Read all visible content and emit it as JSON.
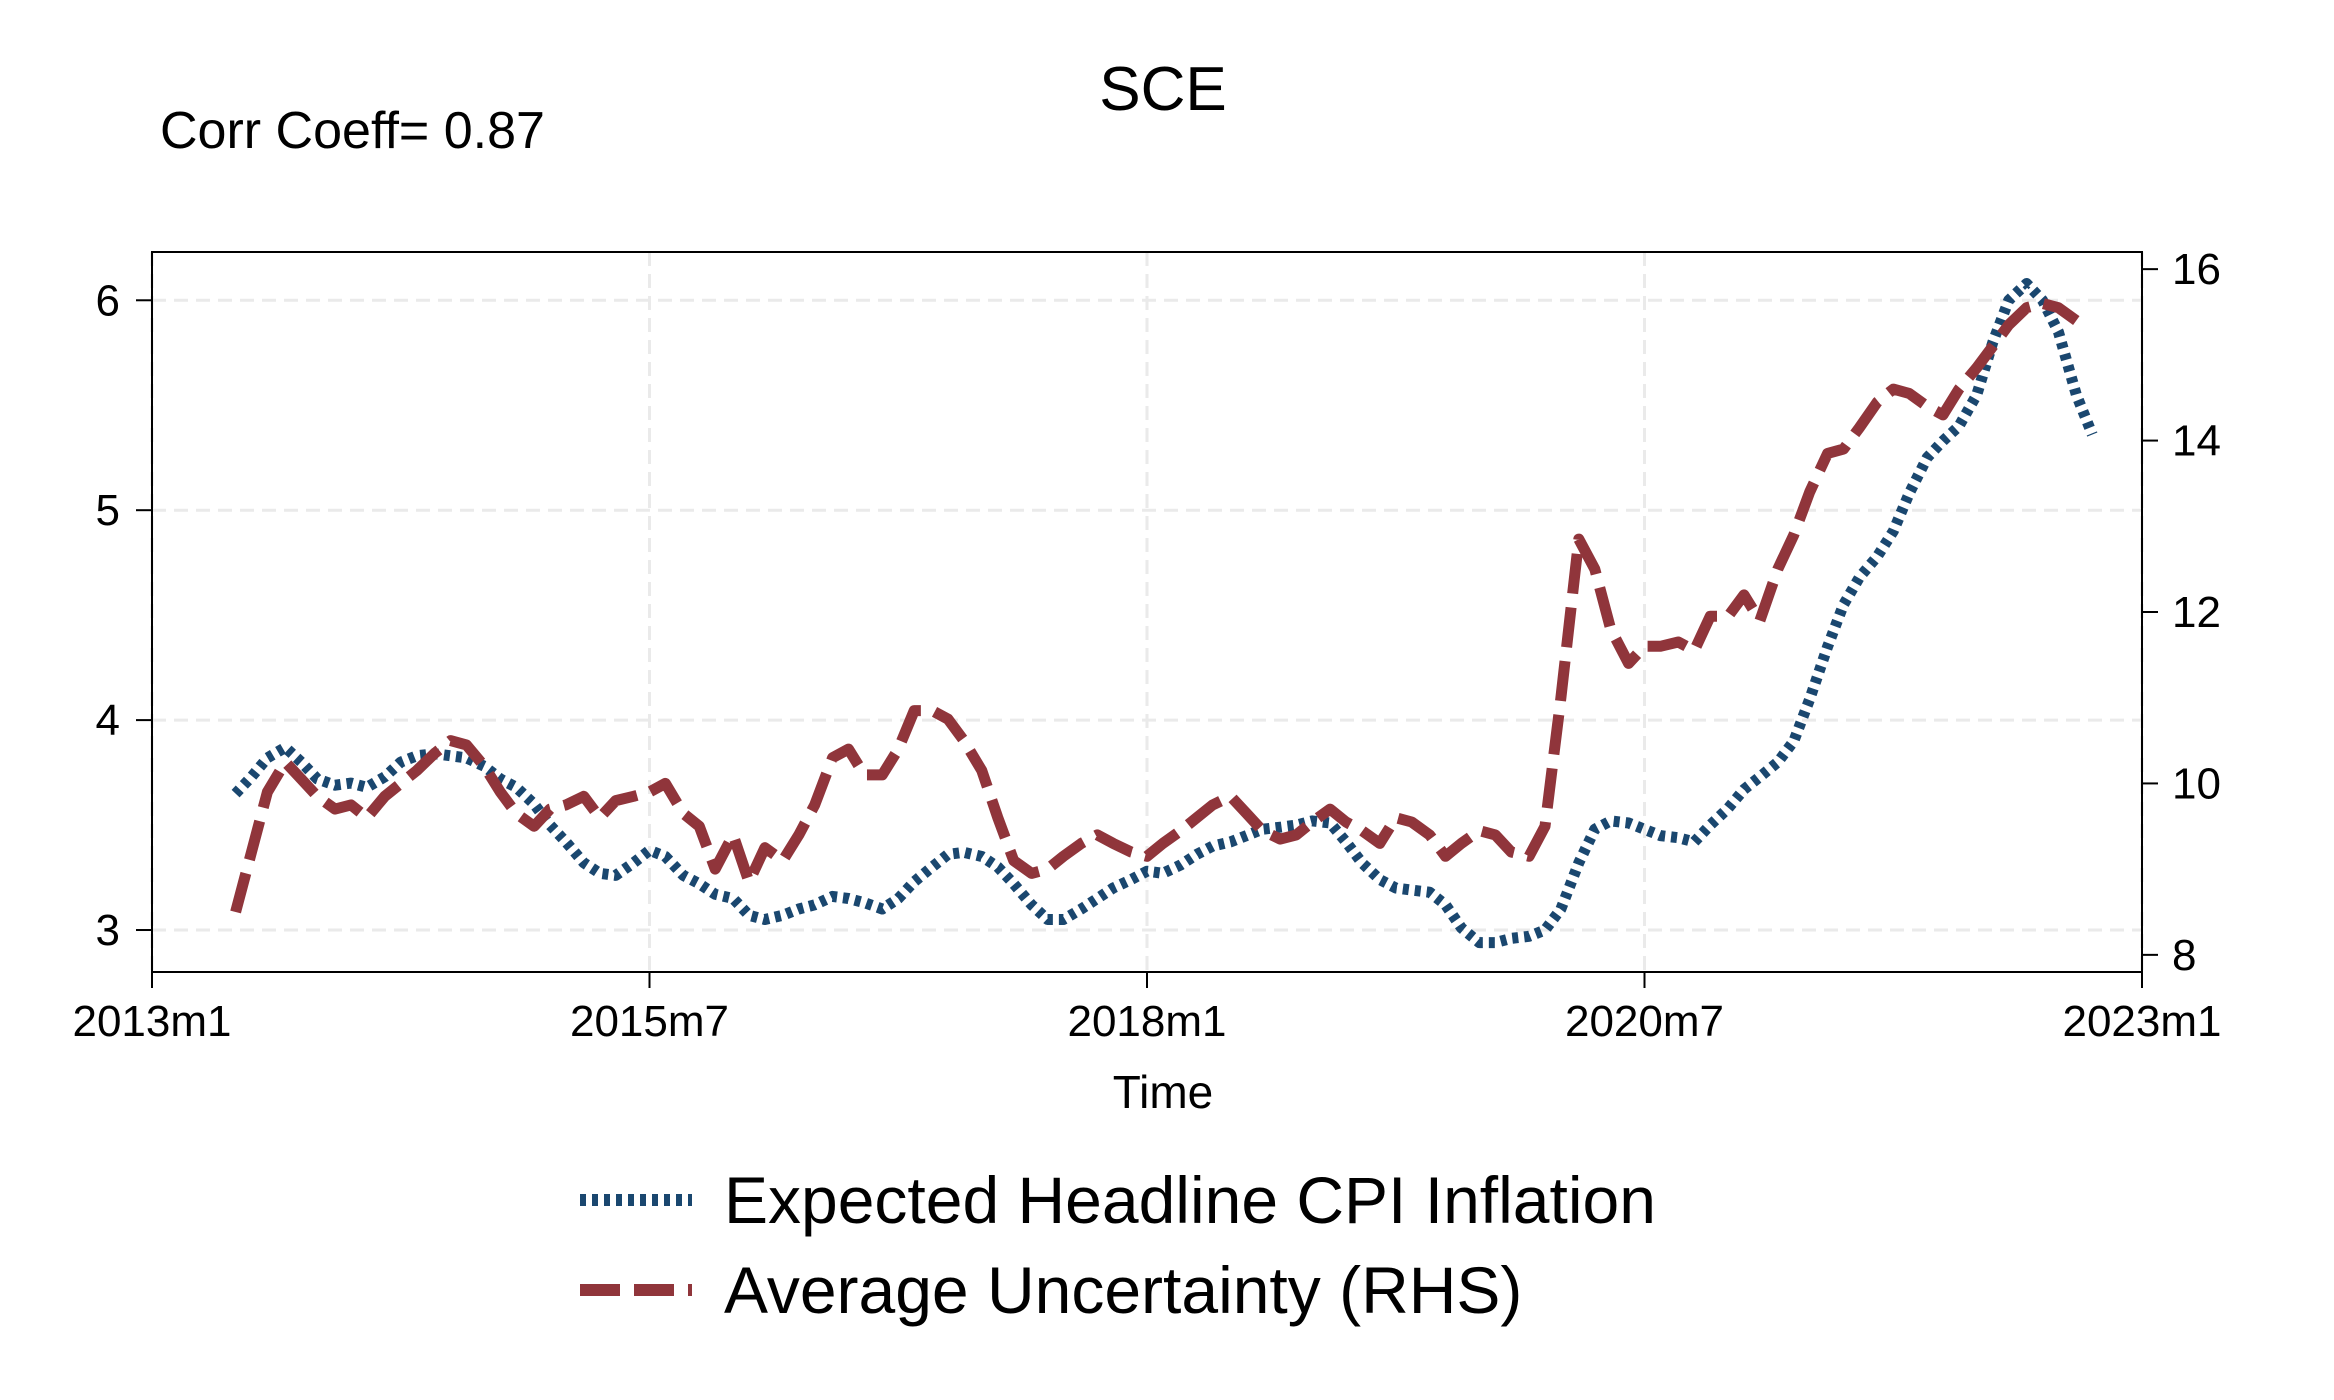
{
  "chart_data": {
    "type": "line",
    "title": "SCE",
    "subtitle": "Corr Coeff= 0.87",
    "xlabel": "Time",
    "ylabel": "",
    "y2label": "",
    "xlim": [
      2013.0,
      2023.0
    ],
    "ylim": [
      2.8,
      6.23
    ],
    "y2lim": [
      7.8,
      16.2
    ],
    "x_ticks": [
      2013.0,
      2015.5,
      2018.0,
      2020.5,
      2023.0
    ],
    "x_tick_labels": [
      "2013m1",
      "2015m7",
      "2018m1",
      "2020m7",
      "2023m1"
    ],
    "y_ticks": [
      3,
      4,
      5,
      6
    ],
    "y_tick_labels": [
      "3",
      "4",
      "5",
      "6"
    ],
    "y2_ticks": [
      8,
      10,
      12,
      14,
      16
    ],
    "y2_tick_labels": [
      "8",
      "10",
      "12",
      "14",
      "16"
    ],
    "grid": true,
    "legend_position": "bottom",
    "series": [
      {
        "name": "Expected Headline CPI Inflation",
        "axis": "left",
        "color": "#1a476f",
        "style": "dotted",
        "points": [
          [
            2013.42,
            3.65
          ],
          [
            2013.5,
            3.73
          ],
          [
            2013.58,
            3.82
          ],
          [
            2013.67,
            3.87
          ],
          [
            2013.75,
            3.8
          ],
          [
            2013.83,
            3.72
          ],
          [
            2013.92,
            3.69
          ],
          [
            2014.0,
            3.7
          ],
          [
            2014.08,
            3.68
          ],
          [
            2014.17,
            3.73
          ],
          [
            2014.25,
            3.8
          ],
          [
            2014.33,
            3.83
          ],
          [
            2014.42,
            3.84
          ],
          [
            2014.5,
            3.83
          ],
          [
            2014.58,
            3.82
          ],
          [
            2014.67,
            3.78
          ],
          [
            2014.75,
            3.72
          ],
          [
            2014.83,
            3.68
          ],
          [
            2014.92,
            3.6
          ],
          [
            2015.0,
            3.5
          ],
          [
            2015.08,
            3.42
          ],
          [
            2015.17,
            3.32
          ],
          [
            2015.25,
            3.27
          ],
          [
            2015.33,
            3.26
          ],
          [
            2015.42,
            3.32
          ],
          [
            2015.5,
            3.38
          ],
          [
            2015.58,
            3.35
          ],
          [
            2015.67,
            3.26
          ],
          [
            2015.75,
            3.22
          ],
          [
            2015.83,
            3.17
          ],
          [
            2015.92,
            3.15
          ],
          [
            2016.0,
            3.07
          ],
          [
            2016.08,
            3.05
          ],
          [
            2016.17,
            3.07
          ],
          [
            2016.25,
            3.1
          ],
          [
            2016.33,
            3.12
          ],
          [
            2016.42,
            3.16
          ],
          [
            2016.5,
            3.15
          ],
          [
            2016.58,
            3.13
          ],
          [
            2016.67,
            3.1
          ],
          [
            2016.75,
            3.15
          ],
          [
            2016.83,
            3.23
          ],
          [
            2016.92,
            3.3
          ],
          [
            2017.0,
            3.36
          ],
          [
            2017.08,
            3.37
          ],
          [
            2017.17,
            3.35
          ],
          [
            2017.25,
            3.3
          ],
          [
            2017.33,
            3.22
          ],
          [
            2017.42,
            3.12
          ],
          [
            2017.5,
            3.05
          ],
          [
            2017.58,
            3.05
          ],
          [
            2017.67,
            3.1
          ],
          [
            2017.75,
            3.15
          ],
          [
            2017.83,
            3.2
          ],
          [
            2017.92,
            3.24
          ],
          [
            2018.0,
            3.28
          ],
          [
            2018.08,
            3.27
          ],
          [
            2018.17,
            3.31
          ],
          [
            2018.25,
            3.36
          ],
          [
            2018.33,
            3.4
          ],
          [
            2018.42,
            3.42
          ],
          [
            2018.5,
            3.45
          ],
          [
            2018.58,
            3.48
          ],
          [
            2018.67,
            3.49
          ],
          [
            2018.75,
            3.5
          ],
          [
            2018.83,
            3.52
          ],
          [
            2018.92,
            3.51
          ],
          [
            2019.0,
            3.42
          ],
          [
            2019.08,
            3.32
          ],
          [
            2019.17,
            3.24
          ],
          [
            2019.25,
            3.2
          ],
          [
            2019.33,
            3.19
          ],
          [
            2019.42,
            3.18
          ],
          [
            2019.5,
            3.12
          ],
          [
            2019.58,
            3.01
          ],
          [
            2019.67,
            2.94
          ],
          [
            2019.75,
            2.94
          ],
          [
            2019.83,
            2.96
          ],
          [
            2019.92,
            2.97
          ],
          [
            2020.0,
            3.0
          ],
          [
            2020.08,
            3.1
          ],
          [
            2020.17,
            3.32
          ],
          [
            2020.25,
            3.48
          ],
          [
            2020.33,
            3.52
          ],
          [
            2020.42,
            3.51
          ],
          [
            2020.5,
            3.48
          ],
          [
            2020.58,
            3.45
          ],
          [
            2020.67,
            3.44
          ],
          [
            2020.75,
            3.42
          ],
          [
            2020.83,
            3.5
          ],
          [
            2020.92,
            3.58
          ],
          [
            2021.0,
            3.67
          ],
          [
            2021.08,
            3.73
          ],
          [
            2021.17,
            3.8
          ],
          [
            2021.25,
            3.9
          ],
          [
            2021.33,
            4.1
          ],
          [
            2021.42,
            4.35
          ],
          [
            2021.5,
            4.55
          ],
          [
            2021.58,
            4.68
          ],
          [
            2021.67,
            4.78
          ],
          [
            2021.75,
            4.9
          ],
          [
            2021.83,
            5.08
          ],
          [
            2021.92,
            5.25
          ],
          [
            2022.0,
            5.33
          ],
          [
            2022.08,
            5.4
          ],
          [
            2022.17,
            5.55
          ],
          [
            2022.25,
            5.8
          ],
          [
            2022.33,
            6.0
          ],
          [
            2022.42,
            6.08
          ],
          [
            2022.5,
            6.0
          ],
          [
            2022.58,
            5.85
          ],
          [
            2022.67,
            5.55
          ],
          [
            2022.75,
            5.36
          ]
        ]
      },
      {
        "name": "Average Uncertainty (RHS)",
        "axis": "right",
        "color": "#90353b",
        "style": "dashed",
        "points": [
          [
            2013.42,
            8.5
          ],
          [
            2013.5,
            9.2
          ],
          [
            2013.58,
            9.9
          ],
          [
            2013.67,
            10.25
          ],
          [
            2013.75,
            10.05
          ],
          [
            2013.83,
            9.85
          ],
          [
            2013.92,
            9.7
          ],
          [
            2014.0,
            9.75
          ],
          [
            2014.08,
            9.6
          ],
          [
            2014.17,
            9.85
          ],
          [
            2014.25,
            10.0
          ],
          [
            2014.33,
            10.15
          ],
          [
            2014.42,
            10.35
          ],
          [
            2014.5,
            10.5
          ],
          [
            2014.58,
            10.45
          ],
          [
            2014.67,
            10.2
          ],
          [
            2014.75,
            9.9
          ],
          [
            2014.83,
            9.65
          ],
          [
            2014.92,
            9.5
          ],
          [
            2015.0,
            9.7
          ],
          [
            2015.08,
            9.75
          ],
          [
            2015.17,
            9.85
          ],
          [
            2015.25,
            9.6
          ],
          [
            2015.33,
            9.8
          ],
          [
            2015.42,
            9.85
          ],
          [
            2015.5,
            9.9
          ],
          [
            2015.58,
            10.0
          ],
          [
            2015.67,
            9.65
          ],
          [
            2015.75,
            9.5
          ],
          [
            2015.83,
            9.0
          ],
          [
            2015.92,
            9.4
          ],
          [
            2016.0,
            8.85
          ],
          [
            2016.08,
            9.25
          ],
          [
            2016.17,
            9.1
          ],
          [
            2016.25,
            9.4
          ],
          [
            2016.33,
            9.75
          ],
          [
            2016.42,
            10.3
          ],
          [
            2016.5,
            10.4
          ],
          [
            2016.58,
            10.1
          ],
          [
            2016.67,
            10.1
          ],
          [
            2016.75,
            10.4
          ],
          [
            2016.83,
            10.85
          ],
          [
            2016.92,
            10.85
          ],
          [
            2017.0,
            10.75
          ],
          [
            2017.08,
            10.5
          ],
          [
            2017.17,
            10.15
          ],
          [
            2017.25,
            9.6
          ],
          [
            2017.33,
            9.1
          ],
          [
            2017.42,
            8.95
          ],
          [
            2017.5,
            9.0
          ],
          [
            2017.58,
            9.15
          ],
          [
            2017.67,
            9.3
          ],
          [
            2017.75,
            9.4
          ],
          [
            2017.83,
            9.3
          ],
          [
            2017.92,
            9.2
          ],
          [
            2018.0,
            9.15
          ],
          [
            2018.08,
            9.3
          ],
          [
            2018.17,
            9.45
          ],
          [
            2018.25,
            9.6
          ],
          [
            2018.33,
            9.75
          ],
          [
            2018.42,
            9.85
          ],
          [
            2018.5,
            9.65
          ],
          [
            2018.58,
            9.45
          ],
          [
            2018.67,
            9.35
          ],
          [
            2018.75,
            9.4
          ],
          [
            2018.83,
            9.55
          ],
          [
            2018.92,
            9.7
          ],
          [
            2019.0,
            9.55
          ],
          [
            2019.08,
            9.45
          ],
          [
            2019.17,
            9.3
          ],
          [
            2019.25,
            9.6
          ],
          [
            2019.33,
            9.55
          ],
          [
            2019.42,
            9.4
          ],
          [
            2019.5,
            9.15
          ],
          [
            2019.58,
            9.3
          ],
          [
            2019.67,
            9.45
          ],
          [
            2019.75,
            9.4
          ],
          [
            2019.83,
            9.2
          ],
          [
            2019.92,
            9.15
          ],
          [
            2020.0,
            9.5
          ],
          [
            2020.08,
            11.0
          ],
          [
            2020.17,
            12.85
          ],
          [
            2020.25,
            12.5
          ],
          [
            2020.33,
            11.8
          ],
          [
            2020.42,
            11.4
          ],
          [
            2020.5,
            11.6
          ],
          [
            2020.58,
            11.6
          ],
          [
            2020.67,
            11.65
          ],
          [
            2020.75,
            11.55
          ],
          [
            2020.83,
            11.95
          ],
          [
            2020.92,
            11.95
          ],
          [
            2021.0,
            12.2
          ],
          [
            2021.08,
            11.9
          ],
          [
            2021.17,
            12.5
          ],
          [
            2021.25,
            12.9
          ],
          [
            2021.33,
            13.4
          ],
          [
            2021.42,
            13.85
          ],
          [
            2021.5,
            13.9
          ],
          [
            2021.58,
            14.15
          ],
          [
            2021.67,
            14.45
          ],
          [
            2021.75,
            14.6
          ],
          [
            2021.83,
            14.55
          ],
          [
            2021.92,
            14.4
          ],
          [
            2022.0,
            14.3
          ],
          [
            2022.08,
            14.6
          ],
          [
            2022.17,
            14.85
          ],
          [
            2022.25,
            15.1
          ],
          [
            2022.33,
            15.35
          ],
          [
            2022.42,
            15.55
          ],
          [
            2022.5,
            15.6
          ],
          [
            2022.58,
            15.55
          ],
          [
            2022.67,
            15.4
          ]
        ]
      }
    ]
  }
}
